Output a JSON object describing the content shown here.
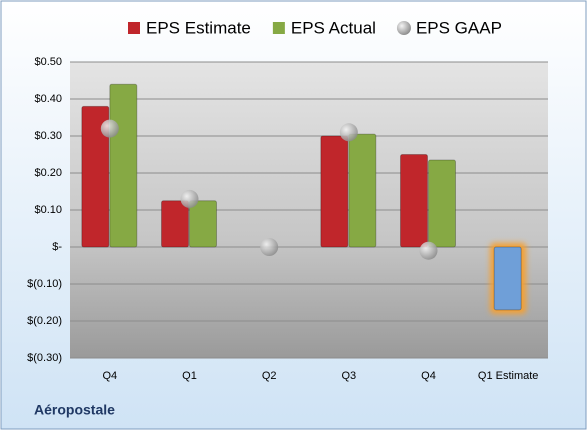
{
  "chart_data": {
    "type": "bar",
    "title": "Aéropostale",
    "categories": [
      "Q4",
      "Q1",
      "Q2",
      "Q3",
      "Q4",
      "Q1 Estimate"
    ],
    "series": [
      {
        "name": "EPS Estimate",
        "color": "#c0262b",
        "values": [
          0.38,
          0.125,
          null,
          0.3,
          0.25,
          -0.17
        ],
        "point_colors": [
          "#c0262b",
          "#c0262b",
          "#c0262b",
          "#c0262b",
          "#c0262b",
          "#6f9fd8"
        ]
      },
      {
        "name": "EPS Actual",
        "color": "#86a944",
        "values": [
          0.44,
          0.125,
          null,
          0.305,
          0.235,
          null
        ]
      },
      {
        "name": "EPS GAAP",
        "color": "#a8a8a8",
        "marker": "circle",
        "values": [
          0.32,
          0.13,
          0.0,
          0.31,
          -0.01,
          null
        ]
      }
    ],
    "ylim": [
      -0.3,
      0.5
    ],
    "yticks": [
      {
        "value": -0.3,
        "label": "$(0.30)"
      },
      {
        "value": -0.2,
        "label": "$(0.20)"
      },
      {
        "value": -0.1,
        "label": "$(0.10)"
      },
      {
        "value": 0,
        "label": "$-"
      },
      {
        "value": 0.1,
        "label": "$0.10"
      },
      {
        "value": 0.2,
        "label": "$0.20"
      },
      {
        "value": 0.3,
        "label": "$0.30"
      },
      {
        "value": 0.4,
        "label": "$0.40"
      },
      {
        "value": 0.5,
        "label": "$0.50"
      }
    ],
    "grid": true
  }
}
